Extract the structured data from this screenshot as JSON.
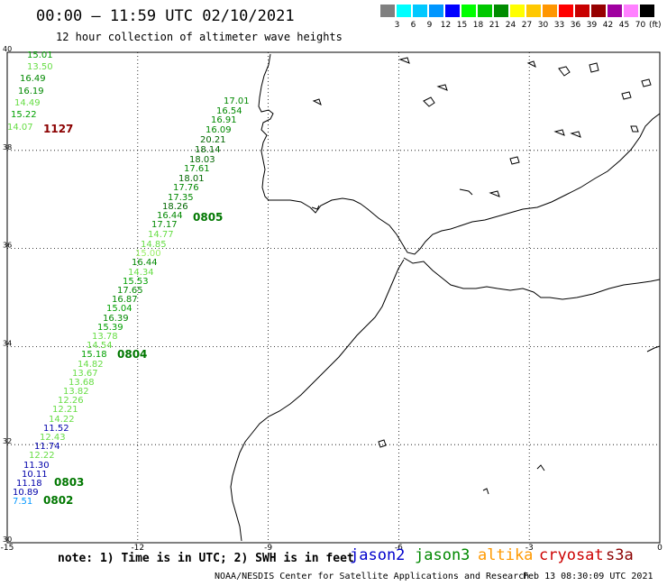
{
  "header": {
    "title": "00:00 – 11:59 UTC 02/10/2021",
    "subtitle": "12 hour collection of altimeter wave heights"
  },
  "legend": {
    "unit": "(ft)",
    "items": [
      {
        "label": "",
        "color": "#808080"
      },
      {
        "label": "3",
        "color": "#00ffff"
      },
      {
        "label": "6",
        "color": "#00c8ff"
      },
      {
        "label": "9",
        "color": "#0096ff"
      },
      {
        "label": "12",
        "color": "#0000ff"
      },
      {
        "label": "15",
        "color": "#00ff00"
      },
      {
        "label": "18",
        "color": "#00c800"
      },
      {
        "label": "21",
        "color": "#008c00"
      },
      {
        "label": "24",
        "color": "#ffff00"
      },
      {
        "label": "27",
        "color": "#ffc800"
      },
      {
        "label": "30",
        "color": "#ff9600"
      },
      {
        "label": "33",
        "color": "#ff0000"
      },
      {
        "label": "36",
        "color": "#c80000"
      },
      {
        "label": "39",
        "color": "#960000"
      },
      {
        "label": "42",
        "color": "#a000a0"
      },
      {
        "label": "45",
        "color": "#ff80ff"
      },
      {
        "label": "70",
        "color": "#000000"
      }
    ]
  },
  "axes": {
    "x_ticks": [
      "-15",
      "-12",
      "-9",
      "-6",
      "-3",
      "0"
    ],
    "y_ticks": [
      "40",
      "38",
      "36",
      "34",
      "32",
      "30"
    ]
  },
  "observations": [
    {
      "value": "15.01",
      "color": "#00a000"
    },
    {
      "value": "13.50",
      "color": "#66dd44"
    },
    {
      "value": "16.49",
      "color": "#008800"
    },
    {
      "value": "16.19",
      "color": "#008800"
    },
    {
      "value": "14.49",
      "color": "#66dd44"
    },
    {
      "value": "15.22",
      "color": "#00a000"
    },
    {
      "value": "14.07",
      "color": "#66dd44"
    },
    {
      "value": "17.01",
      "color": "#008800"
    },
    {
      "value": "16.54",
      "color": "#008800"
    },
    {
      "value": "16.91",
      "color": "#008800"
    },
    {
      "value": "16.09",
      "color": "#008800"
    },
    {
      "value": "20.21",
      "color": "#006600"
    },
    {
      "value": "18.14",
      "color": "#006600"
    },
    {
      "value": "18.03",
      "color": "#006600"
    },
    {
      "value": "17.61",
      "color": "#008800"
    },
    {
      "value": "18.01",
      "color": "#006600"
    },
    {
      "value": "17.76",
      "color": "#008800"
    },
    {
      "value": "17.35",
      "color": "#008800"
    },
    {
      "value": "18.26",
      "color": "#006600"
    },
    {
      "value": "16.44",
      "color": "#008800"
    },
    {
      "value": "17.17",
      "color": "#008800"
    },
    {
      "value": "14.77",
      "color": "#66dd44"
    },
    {
      "value": "14.85",
      "color": "#66dd44"
    },
    {
      "value": "15.00",
      "color": "#99ee66"
    },
    {
      "value": "16.44",
      "color": "#008800"
    },
    {
      "value": "14.34",
      "color": "#66dd44"
    },
    {
      "value": "15.53",
      "color": "#00a000"
    },
    {
      "value": "17.65",
      "color": "#008800"
    },
    {
      "value": "16.87",
      "color": "#008800"
    },
    {
      "value": "15.04",
      "color": "#00a000"
    },
    {
      "value": "16.39",
      "color": "#008800"
    },
    {
      "value": "15.39",
      "color": "#00a000"
    },
    {
      "value": "13.78",
      "color": "#66dd44"
    },
    {
      "value": "14.54",
      "color": "#66dd44"
    },
    {
      "value": "15.18",
      "color": "#00a000"
    },
    {
      "value": "14.82",
      "color": "#66dd44"
    },
    {
      "value": "13.67",
      "color": "#66dd44"
    },
    {
      "value": "13.68",
      "color": "#66dd44"
    },
    {
      "value": "13.82",
      "color": "#66dd44"
    },
    {
      "value": "12.26",
      "color": "#66dd44"
    },
    {
      "value": "12.21",
      "color": "#66dd44"
    },
    {
      "value": "14.22",
      "color": "#66dd44"
    },
    {
      "value": "11.52",
      "color": "#0000aa"
    },
    {
      "value": "12.43",
      "color": "#66dd44"
    },
    {
      "value": "11.74",
      "color": "#0000aa"
    },
    {
      "value": "12.22",
      "color": "#66dd44"
    },
    {
      "value": "11.30",
      "color": "#0000aa"
    },
    {
      "value": "10.11",
      "color": "#0000aa"
    },
    {
      "value": "11.18",
      "color": "#0000aa"
    },
    {
      "value": "10.89",
      "color": "#0000aa"
    },
    {
      "value": "7.51",
      "color": "#0096ff"
    }
  ],
  "pass_labels": [
    {
      "text": "1127",
      "color": "#8b0000"
    },
    {
      "text": "0805",
      "color": "#007700"
    },
    {
      "text": "0804",
      "color": "#007700"
    },
    {
      "text": "0803",
      "color": "#007700"
    },
    {
      "text": "0802",
      "color": "#007700"
    }
  ],
  "footer": {
    "note": "note: 1) Time is in UTC; 2) SWH is in feet",
    "satellites": [
      {
        "name": "jason2",
        "color": "#0000cc"
      },
      {
        "name": "jason3",
        "color": "#008800"
      },
      {
        "name": "altika",
        "color": "#ff9900"
      },
      {
        "name": "cryosat",
        "color": "#cc0000"
      },
      {
        "name": "s3a",
        "color": "#8b0000"
      }
    ],
    "credit": "NOAA/NESDIS Center for Satellite Applications and Research",
    "timestamp": "Feb 13 08:30:09 UTC 2021"
  }
}
